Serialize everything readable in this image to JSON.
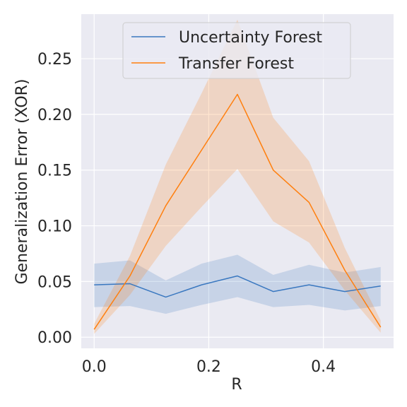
{
  "chart_data": {
    "type": "line",
    "title": "",
    "xlabel": "R",
    "ylabel": "Generalization Error (XOR)",
    "xlim": [
      -0.0225,
      0.5225
    ],
    "ylim": [
      -0.01,
      0.29
    ],
    "x_ticks": [
      "0.0",
      "0.2",
      "0.4"
    ],
    "x_tick_values": [
      0.0,
      0.2,
      0.4
    ],
    "y_ticks": [
      "0.00",
      "0.05",
      "0.10",
      "0.15",
      "0.20",
      "0.25"
    ],
    "y_tick_values": [
      0.0,
      0.05,
      0.1,
      0.15,
      0.2,
      0.25
    ],
    "grid": true,
    "legend_position": "top-center",
    "x": [
      0.0,
      0.0625,
      0.125,
      0.1875,
      0.25,
      0.3125,
      0.375,
      0.4375,
      0.5
    ],
    "series": [
      {
        "name": "Uncertainty Forest",
        "color": "#3a78c0",
        "values": [
          0.047,
          0.048,
          0.036,
          0.047,
          0.055,
          0.041,
          0.047,
          0.041,
          0.046
        ],
        "lower": [
          0.027,
          0.028,
          0.021,
          0.029,
          0.036,
          0.027,
          0.029,
          0.024,
          0.028
        ],
        "upper": [
          0.066,
          0.069,
          0.051,
          0.066,
          0.074,
          0.056,
          0.065,
          0.058,
          0.063
        ]
      },
      {
        "name": "Transfer Forest",
        "color": "#ff7f0e",
        "values": [
          0.007,
          0.055,
          0.118,
          0.168,
          0.218,
          0.15,
          0.121,
          0.06,
          0.009
        ],
        "lower": [
          0.003,
          0.038,
          0.082,
          0.117,
          0.151,
          0.104,
          0.085,
          0.042,
          0.004
        ],
        "upper": [
          0.012,
          0.073,
          0.155,
          0.219,
          0.285,
          0.197,
          0.158,
          0.08,
          0.015
        ]
      }
    ]
  }
}
